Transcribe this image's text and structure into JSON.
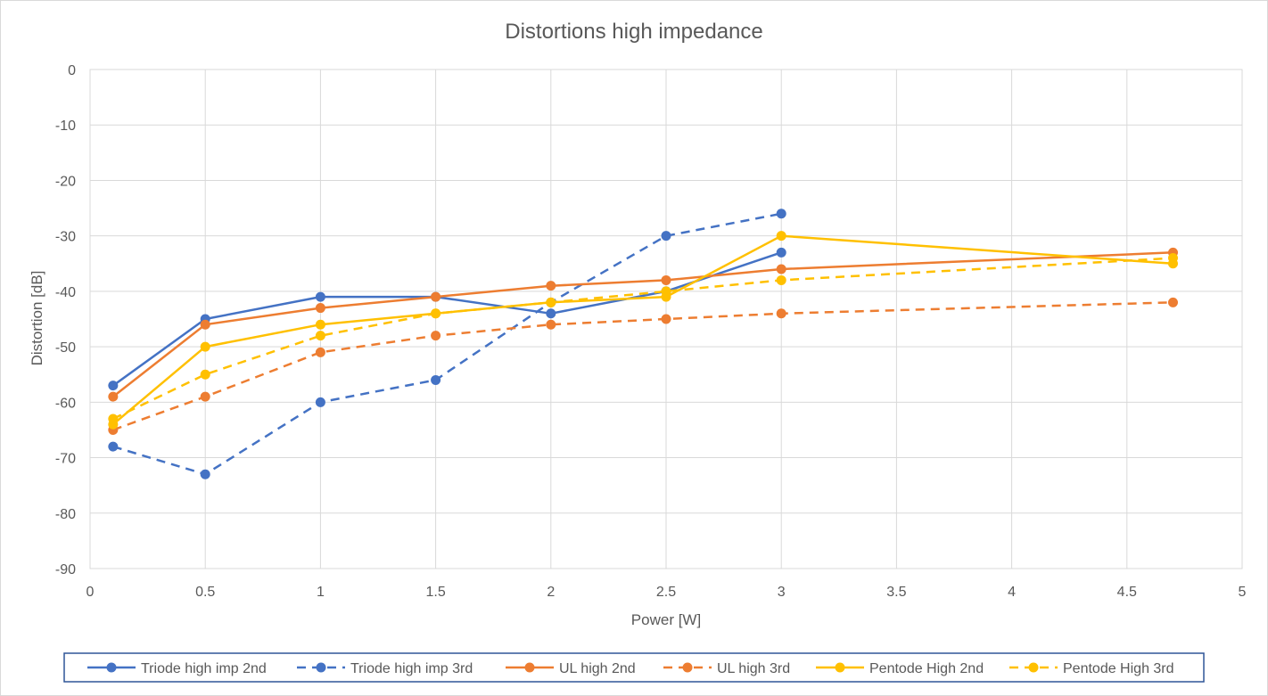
{
  "chart_data": {
    "type": "line",
    "title": "Distortions high impedance",
    "xlabel": "Power [W]",
    "ylabel": "Distortion [dB]",
    "xlim": [
      0,
      5
    ],
    "ylim": [
      -90,
      0
    ],
    "xticks": [
      "0",
      "0.5",
      "1",
      "1.5",
      "2",
      "2.5",
      "3",
      "3.5",
      "4",
      "4.5",
      "5"
    ],
    "yticks": [
      "0",
      "-10",
      "-20",
      "-30",
      "-40",
      "-50",
      "-60",
      "-70",
      "-80",
      "-90"
    ],
    "grid": true,
    "legend_position": "bottom",
    "series": [
      {
        "name": "Triode high imp 2nd",
        "color": "#4472C4",
        "dashed": false,
        "x": [
          0.1,
          0.5,
          1,
          1.5,
          2,
          2.5,
          3
        ],
        "y": [
          -57,
          -45,
          -41,
          -41,
          -44,
          -40,
          -33
        ]
      },
      {
        "name": "Triode high imp 3rd",
        "color": "#4472C4",
        "dashed": true,
        "x": [
          0.1,
          0.5,
          1,
          1.5,
          2,
          2.5,
          3
        ],
        "y": [
          -68,
          -73,
          -60,
          -56,
          -42,
          -30,
          -26
        ]
      },
      {
        "name": "UL high 2nd",
        "color": "#ED7D31",
        "dashed": false,
        "x": [
          0.1,
          0.5,
          1,
          1.5,
          2,
          2.5,
          3,
          4.7
        ],
        "y": [
          -59,
          -46,
          -43,
          -41,
          -39,
          -38,
          -36,
          -33
        ]
      },
      {
        "name": "UL high 3rd",
        "color": "#ED7D31",
        "dashed": true,
        "x": [
          0.1,
          0.5,
          1,
          1.5,
          2,
          2.5,
          3,
          4.7
        ],
        "y": [
          -65,
          -59,
          -51,
          -48,
          -46,
          -45,
          -44,
          -42
        ]
      },
      {
        "name": "Pentode High 2nd",
        "color": "#FFC000",
        "dashed": false,
        "x": [
          0.1,
          0.5,
          1,
          1.5,
          2,
          2.5,
          3,
          4.7
        ],
        "y": [
          -64,
          -50,
          -46,
          -44,
          -42,
          -41,
          -30,
          -35
        ]
      },
      {
        "name": "Pentode High 3rd",
        "color": "#FFC000",
        "dashed": true,
        "x": [
          0.1,
          0.5,
          1,
          1.5,
          2,
          2.5,
          3,
          4.7
        ],
        "y": [
          -63,
          -55,
          -48,
          -44,
          -42,
          -40,
          -38,
          -34
        ]
      }
    ]
  }
}
